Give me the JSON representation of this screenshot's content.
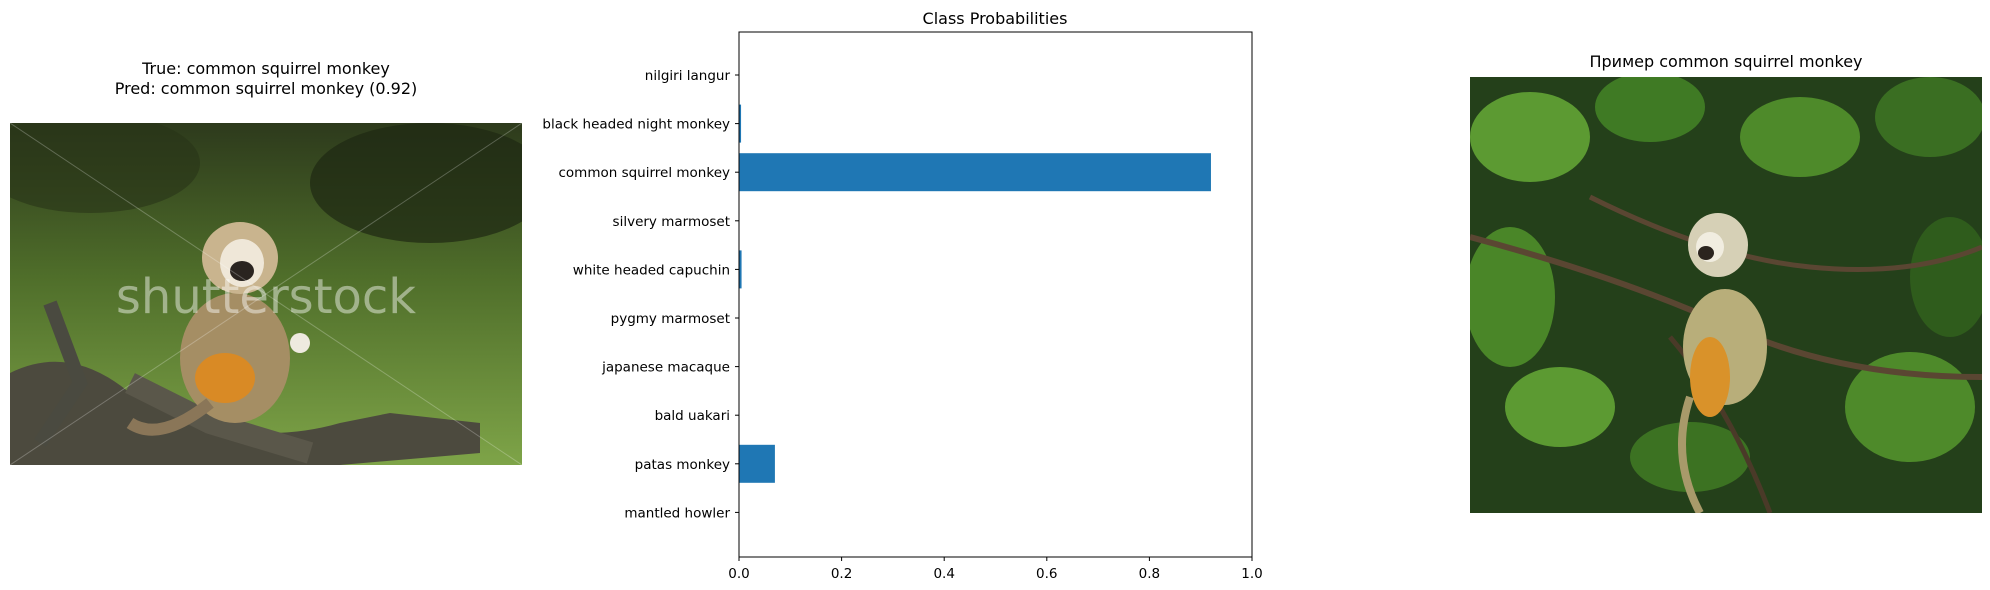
{
  "left_panel": {
    "title_line1": "True: common squirrel monkey",
    "title_line2": "Pred: common squirrel monkey (0.92)",
    "watermark": "shutterstock"
  },
  "right_panel": {
    "title": "Пример common squirrel monkey"
  },
  "chart_data": {
    "type": "bar",
    "orientation": "horizontal",
    "title": "Class Probabilities",
    "categories": [
      "mantled howler",
      "patas monkey",
      "bald uakari",
      "japanese macaque",
      "pygmy marmoset",
      "white headed capuchin",
      "silvery marmoset",
      "common squirrel monkey",
      "black headed night monkey",
      "nilgiri langur"
    ],
    "values": [
      0.0,
      0.07,
      0.0,
      0.0,
      0.0,
      0.005,
      0.0,
      0.92,
      0.004,
      0.0
    ],
    "xlim": [
      0,
      1.0
    ],
    "xticks": [
      "0.0",
      "0.2",
      "0.4",
      "0.6",
      "0.8",
      "1.0"
    ],
    "xlabel": "",
    "ylabel": "",
    "grid": false,
    "bar_color": "#1f77b4"
  },
  "colors": {
    "bar": "#1f77b4",
    "foliage_dark": "#1f3a14",
    "foliage_light": "#4e8a2a",
    "grass": "#6e9a3a",
    "monkey_body": "#b9a27a",
    "monkey_orange": "#d98a25"
  }
}
